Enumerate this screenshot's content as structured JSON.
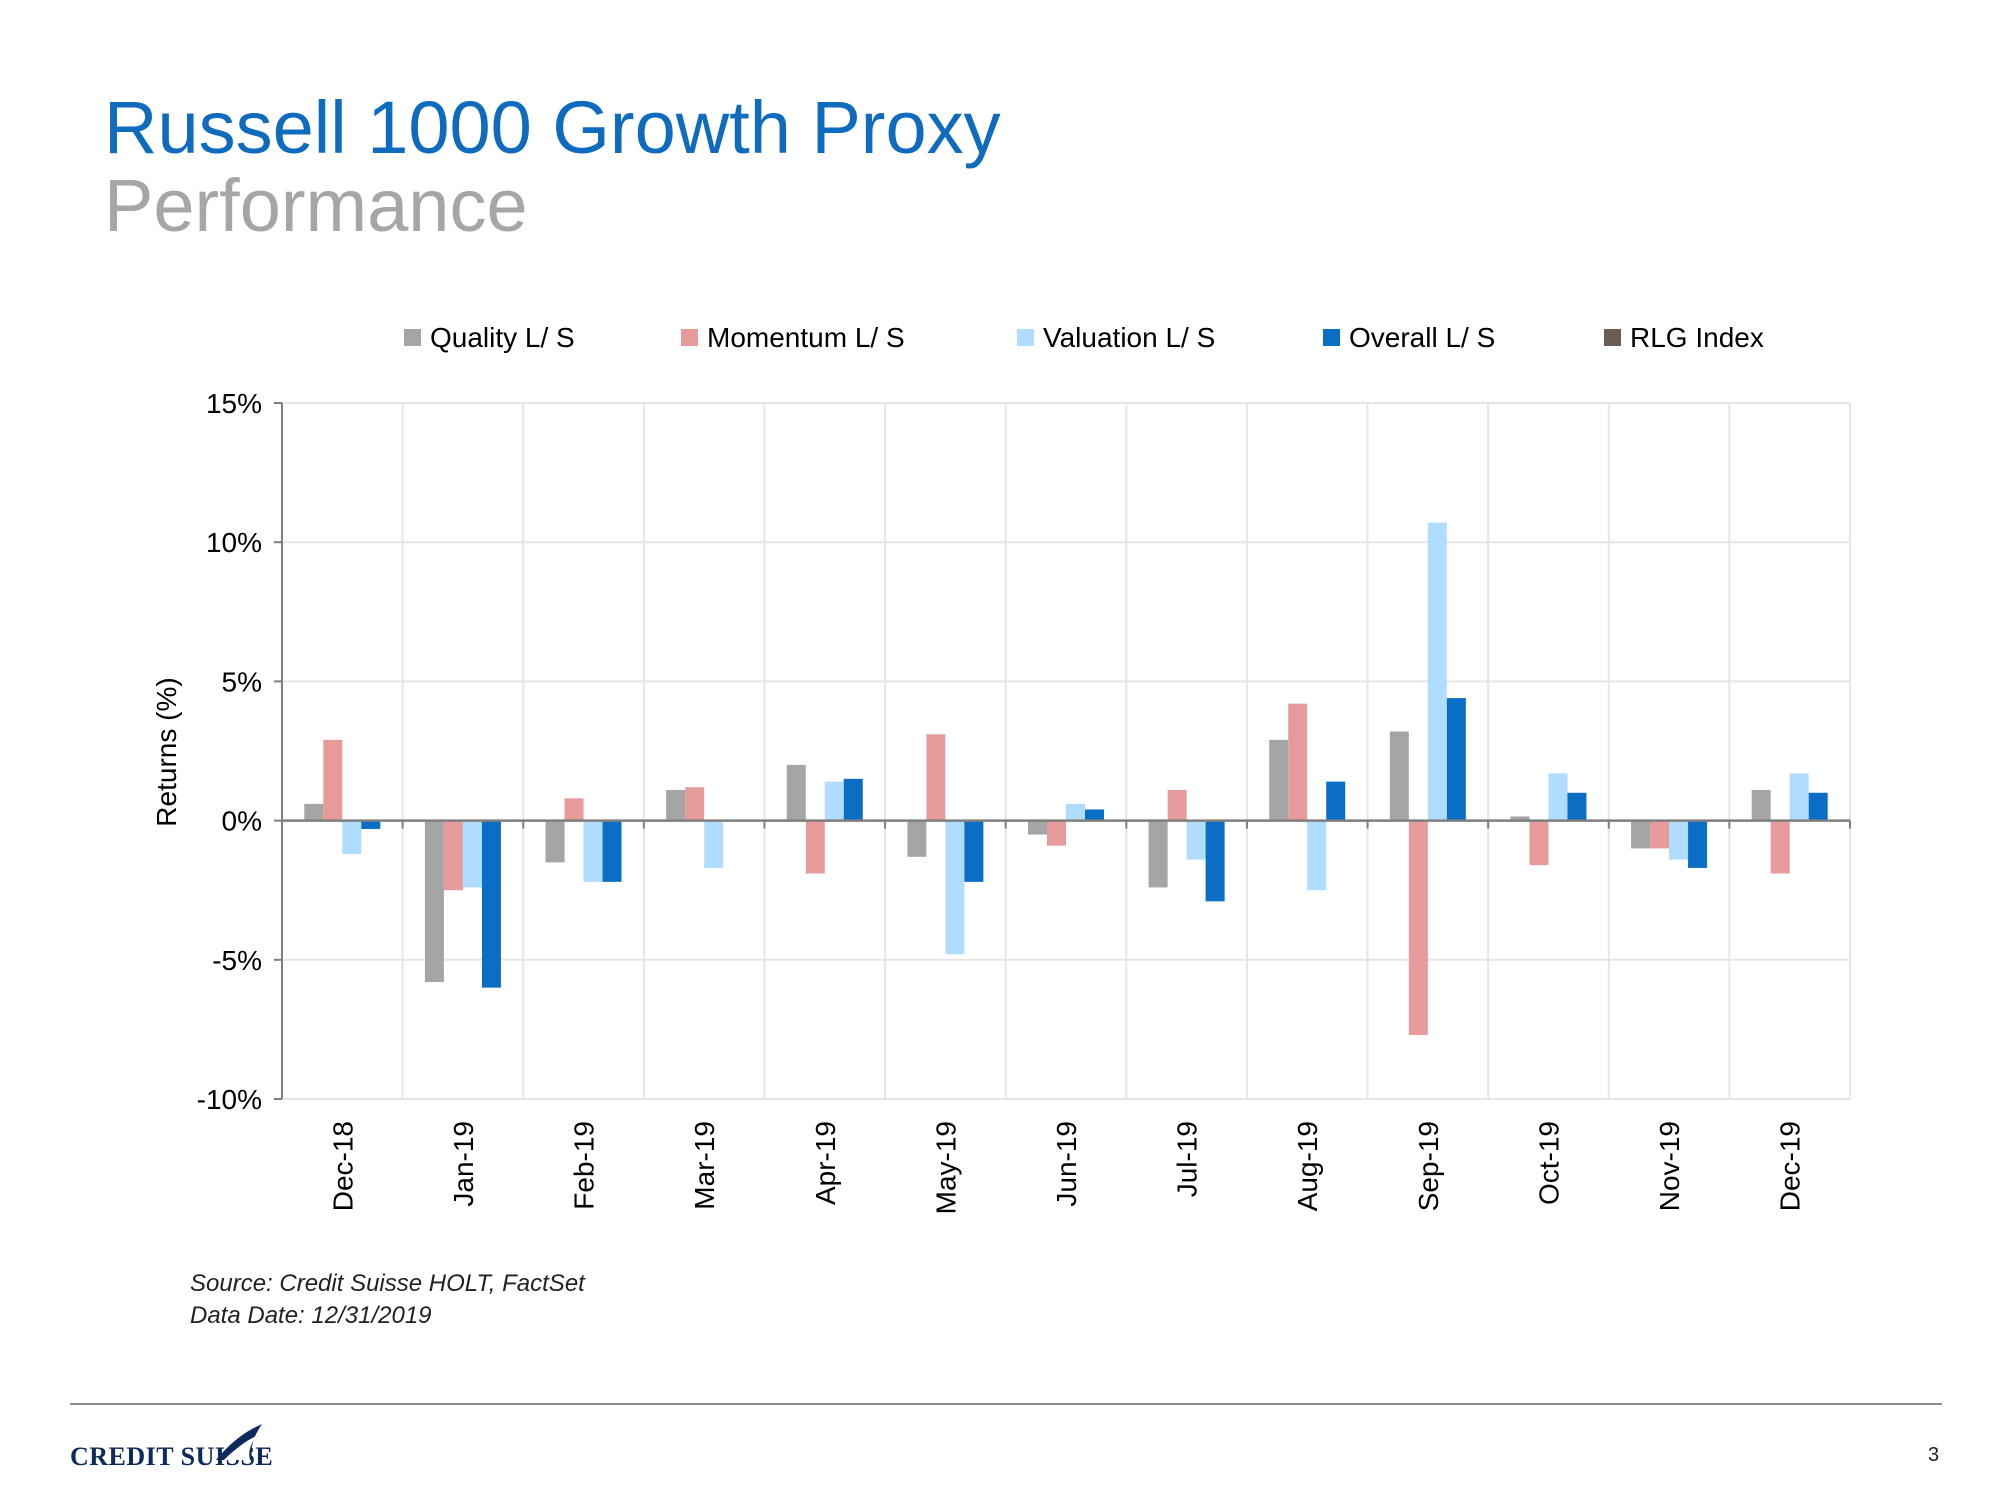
{
  "slide": {
    "title": "Russell 1000 Growth Proxy",
    "subtitle": "Performance",
    "source_line": "Source: Credit Suisse HOLT, FactSet",
    "date_line": "Data Date: 12/31/2019",
    "brand": "CREDIT SUISSE",
    "page_number": "3"
  },
  "chart_data": {
    "type": "bar",
    "title": "",
    "xlabel": "",
    "ylabel": "Returns (%)",
    "ylim": [
      -10,
      15
    ],
    "yticks": [
      15,
      10,
      5,
      0,
      -5,
      -10
    ],
    "ytick_labels": [
      "15%",
      "10%",
      "5%",
      "0%",
      "-5%",
      "-10%"
    ],
    "grid": true,
    "legend_position": "top",
    "categories": [
      "Dec-18",
      "Jan-19",
      "Feb-19",
      "Mar-19",
      "Apr-19",
      "May-19",
      "Jun-19",
      "Jul-19",
      "Aug-19",
      "Sep-19",
      "Oct-19",
      "Nov-19",
      "Dec-19"
    ],
    "series": [
      {
        "name": "Quality L/ S",
        "color": "#a5a5a5",
        "values": [
          0.6,
          -5.8,
          -1.5,
          1.1,
          2.0,
          -1.3,
          -0.5,
          -2.4,
          2.9,
          3.2,
          0.15,
          -1.0,
          1.1
        ]
      },
      {
        "name": "Momentum L/ S",
        "color": "#e79a9a",
        "values": [
          2.9,
          -2.5,
          0.8,
          1.2,
          -1.9,
          3.1,
          -0.9,
          1.1,
          4.2,
          -7.7,
          -1.6,
          -1.0,
          -1.9
        ]
      },
      {
        "name": "Valuation L/ S",
        "color": "#b0dcff",
        "values": [
          -1.2,
          -2.4,
          -2.2,
          -1.7,
          1.4,
          -4.8,
          0.6,
          -1.4,
          -2.5,
          10.7,
          1.7,
          -1.4,
          1.7
        ]
      },
      {
        "name": "Overall L/ S",
        "color": "#0a6ec4",
        "values": [
          -0.3,
          -6.0,
          -2.2,
          0.0,
          1.5,
          -2.2,
          0.4,
          -2.9,
          1.4,
          4.4,
          1.0,
          -1.7,
          1.0
        ]
      },
      {
        "name": "RLG Index",
        "color": "#6d5c52",
        "values": [
          null,
          null,
          null,
          null,
          null,
          null,
          null,
          null,
          null,
          null,
          null,
          null,
          null
        ]
      }
    ]
  }
}
